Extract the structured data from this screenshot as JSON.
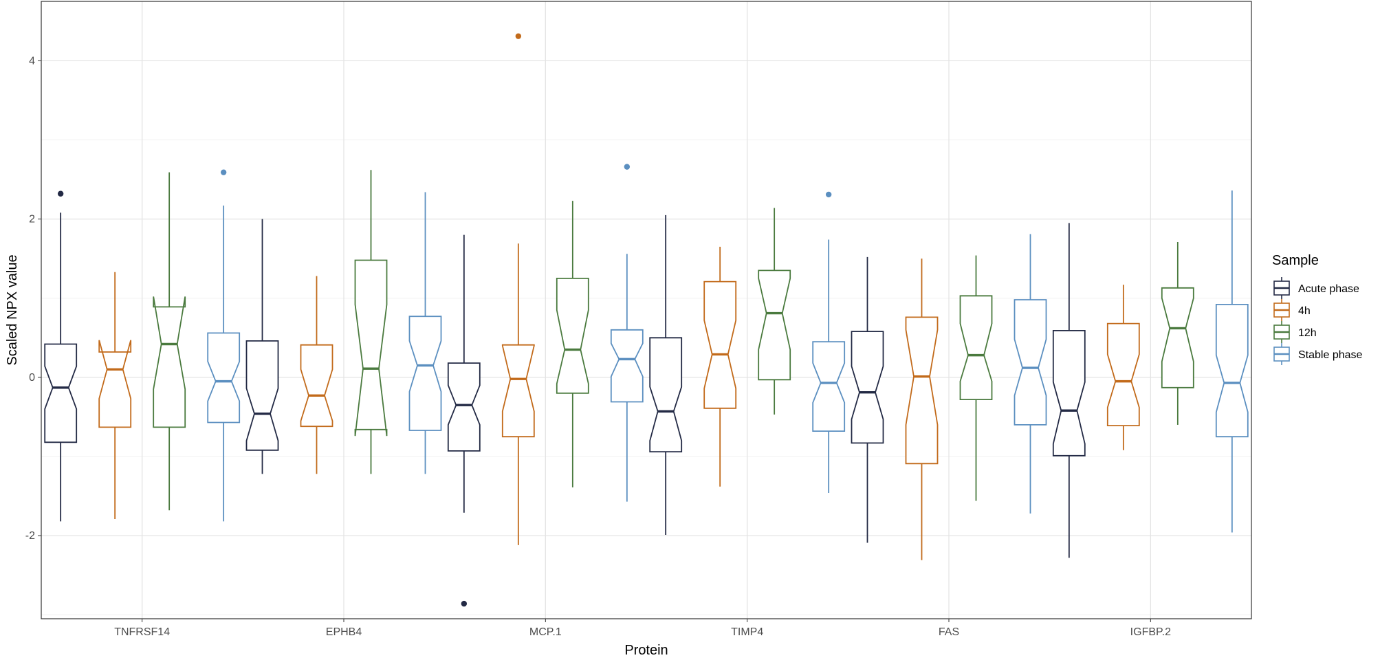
{
  "chart_data": {
    "type": "boxplot",
    "notched": true,
    "xlabel": "Protein",
    "ylabel": "Scaled NPX value",
    "ylim": [
      -3.05,
      4.75
    ],
    "yticks": [
      -2,
      0,
      2,
      4
    ],
    "ytick_labels": [
      "-2",
      "0",
      "2",
      "4"
    ],
    "categories": [
      "TNFRSF14",
      "EPHB4",
      "MCP.1",
      "TIMP4",
      "FAS",
      "IGFBP.2"
    ],
    "legend": {
      "title": "Sample",
      "position": "right"
    },
    "series": [
      {
        "name": "Acute phase",
        "color": "#232a45",
        "boxes": [
          {
            "whisker_low": -1.82,
            "q1": -0.82,
            "median": -0.13,
            "q3": 0.42,
            "whisker_high": 2.08,
            "notch_low": -0.4,
            "notch_high": 0.14,
            "outliers": [
              2.32
            ]
          },
          {
            "whisker_low": -1.22,
            "q1": -0.92,
            "median": -0.46,
            "q3": 0.46,
            "whisker_high": 2.0,
            "notch_low": -0.8,
            "notch_high": -0.14,
            "outliers": []
          },
          {
            "whisker_low": -1.71,
            "q1": -0.93,
            "median": -0.35,
            "q3": 0.18,
            "whisker_high": 1.8,
            "notch_low": -0.6,
            "notch_high": -0.1,
            "outliers": [
              -2.86
            ]
          },
          {
            "whisker_low": -1.99,
            "q1": -0.94,
            "median": -0.43,
            "q3": 0.5,
            "whisker_high": 2.05,
            "notch_low": -0.8,
            "notch_high": -0.12,
            "outliers": []
          },
          {
            "whisker_low": -2.09,
            "q1": -0.83,
            "median": -0.19,
            "q3": 0.58,
            "whisker_high": 1.52,
            "notch_low": -0.53,
            "notch_high": 0.14,
            "outliers": []
          },
          {
            "whisker_low": -2.28,
            "q1": -0.99,
            "median": -0.42,
            "q3": 0.59,
            "whisker_high": 1.95,
            "notch_low": -0.84,
            "notch_high": -0.06,
            "outliers": []
          }
        ]
      },
      {
        "name": "4h",
        "color": "#c26a1a",
        "boxes": [
          {
            "whisker_low": -1.79,
            "q1": -0.63,
            "median": 0.1,
            "q3": 0.32,
            "whisker_high": 1.33,
            "notch_low": -0.27,
            "notch_high": 0.47,
            "outliers": []
          },
          {
            "whisker_low": -1.22,
            "q1": -0.62,
            "median": -0.23,
            "q3": 0.41,
            "whisker_high": 1.28,
            "notch_low": -0.55,
            "notch_high": 0.1,
            "outliers": []
          },
          {
            "whisker_low": -2.12,
            "q1": -0.75,
            "median": -0.02,
            "q3": 0.41,
            "whisker_high": 1.69,
            "notch_low": -0.43,
            "notch_high": 0.4,
            "outliers": [
              4.31
            ]
          },
          {
            "whisker_low": -1.38,
            "q1": -0.39,
            "median": 0.29,
            "q3": 1.21,
            "whisker_high": 1.65,
            "notch_low": -0.14,
            "notch_high": 0.72,
            "outliers": []
          },
          {
            "whisker_low": -2.31,
            "q1": -1.09,
            "median": 0.01,
            "q3": 0.76,
            "whisker_high": 1.5,
            "notch_low": -0.6,
            "notch_high": 0.6,
            "outliers": []
          },
          {
            "whisker_low": -0.92,
            "q1": -0.61,
            "median": -0.05,
            "q3": 0.68,
            "whisker_high": 1.17,
            "notch_low": -0.38,
            "notch_high": 0.29,
            "outliers": []
          }
        ]
      },
      {
        "name": "12h",
        "color": "#4a7a3e",
        "boxes": [
          {
            "whisker_low": -1.68,
            "q1": -0.63,
            "median": 0.42,
            "q3": 0.89,
            "whisker_high": 2.59,
            "notch_low": -0.15,
            "notch_high": 1.02,
            "outliers": []
          },
          {
            "whisker_low": -1.22,
            "q1": -0.66,
            "median": 0.11,
            "q3": 1.48,
            "whisker_high": 2.62,
            "notch_low": -0.74,
            "notch_high": 0.92,
            "outliers": []
          },
          {
            "whisker_low": -1.39,
            "q1": -0.2,
            "median": 0.35,
            "q3": 1.25,
            "whisker_high": 2.23,
            "notch_low": -0.08,
            "notch_high": 0.85,
            "outliers": []
          },
          {
            "whisker_low": -0.47,
            "q1": -0.03,
            "median": 0.81,
            "q3": 1.35,
            "whisker_high": 2.14,
            "notch_low": 0.35,
            "notch_high": 1.25,
            "outliers": []
          },
          {
            "whisker_low": -1.56,
            "q1": -0.28,
            "median": 0.28,
            "q3": 1.03,
            "whisker_high": 1.54,
            "notch_low": -0.05,
            "notch_high": 0.68,
            "outliers": []
          },
          {
            "whisker_low": -0.6,
            "q1": -0.13,
            "median": 0.62,
            "q3": 1.13,
            "whisker_high": 1.71,
            "notch_low": 0.2,
            "notch_high": 1.0,
            "outliers": []
          }
        ]
      },
      {
        "name": "Stable phase",
        "color": "#5b8fc0",
        "boxes": [
          {
            "whisker_low": -1.82,
            "q1": -0.57,
            "median": -0.05,
            "q3": 0.56,
            "whisker_high": 2.17,
            "notch_low": -0.3,
            "notch_high": 0.2,
            "outliers": [
              2.59
            ]
          },
          {
            "whisker_low": -1.22,
            "q1": -0.67,
            "median": 0.15,
            "q3": 0.77,
            "whisker_high": 2.34,
            "notch_low": -0.18,
            "notch_high": 0.46,
            "outliers": []
          },
          {
            "whisker_low": -1.57,
            "q1": -0.31,
            "median": 0.23,
            "q3": 0.6,
            "whisker_high": 1.56,
            "notch_low": 0.01,
            "notch_high": 0.43,
            "outliers": [
              2.66
            ]
          },
          {
            "whisker_low": -1.46,
            "q1": -0.68,
            "median": -0.07,
            "q3": 0.45,
            "whisker_high": 1.74,
            "notch_low": -0.32,
            "notch_high": 0.18,
            "outliers": [
              2.31
            ]
          },
          {
            "whisker_low": -1.72,
            "q1": -0.6,
            "median": 0.12,
            "q3": 0.98,
            "whisker_high": 1.81,
            "notch_low": -0.23,
            "notch_high": 0.48,
            "outliers": []
          },
          {
            "whisker_low": -1.96,
            "q1": -0.75,
            "median": -0.07,
            "q3": 0.92,
            "whisker_high": 2.36,
            "notch_low": -0.44,
            "notch_high": 0.28,
            "outliers": []
          }
        ]
      }
    ]
  }
}
